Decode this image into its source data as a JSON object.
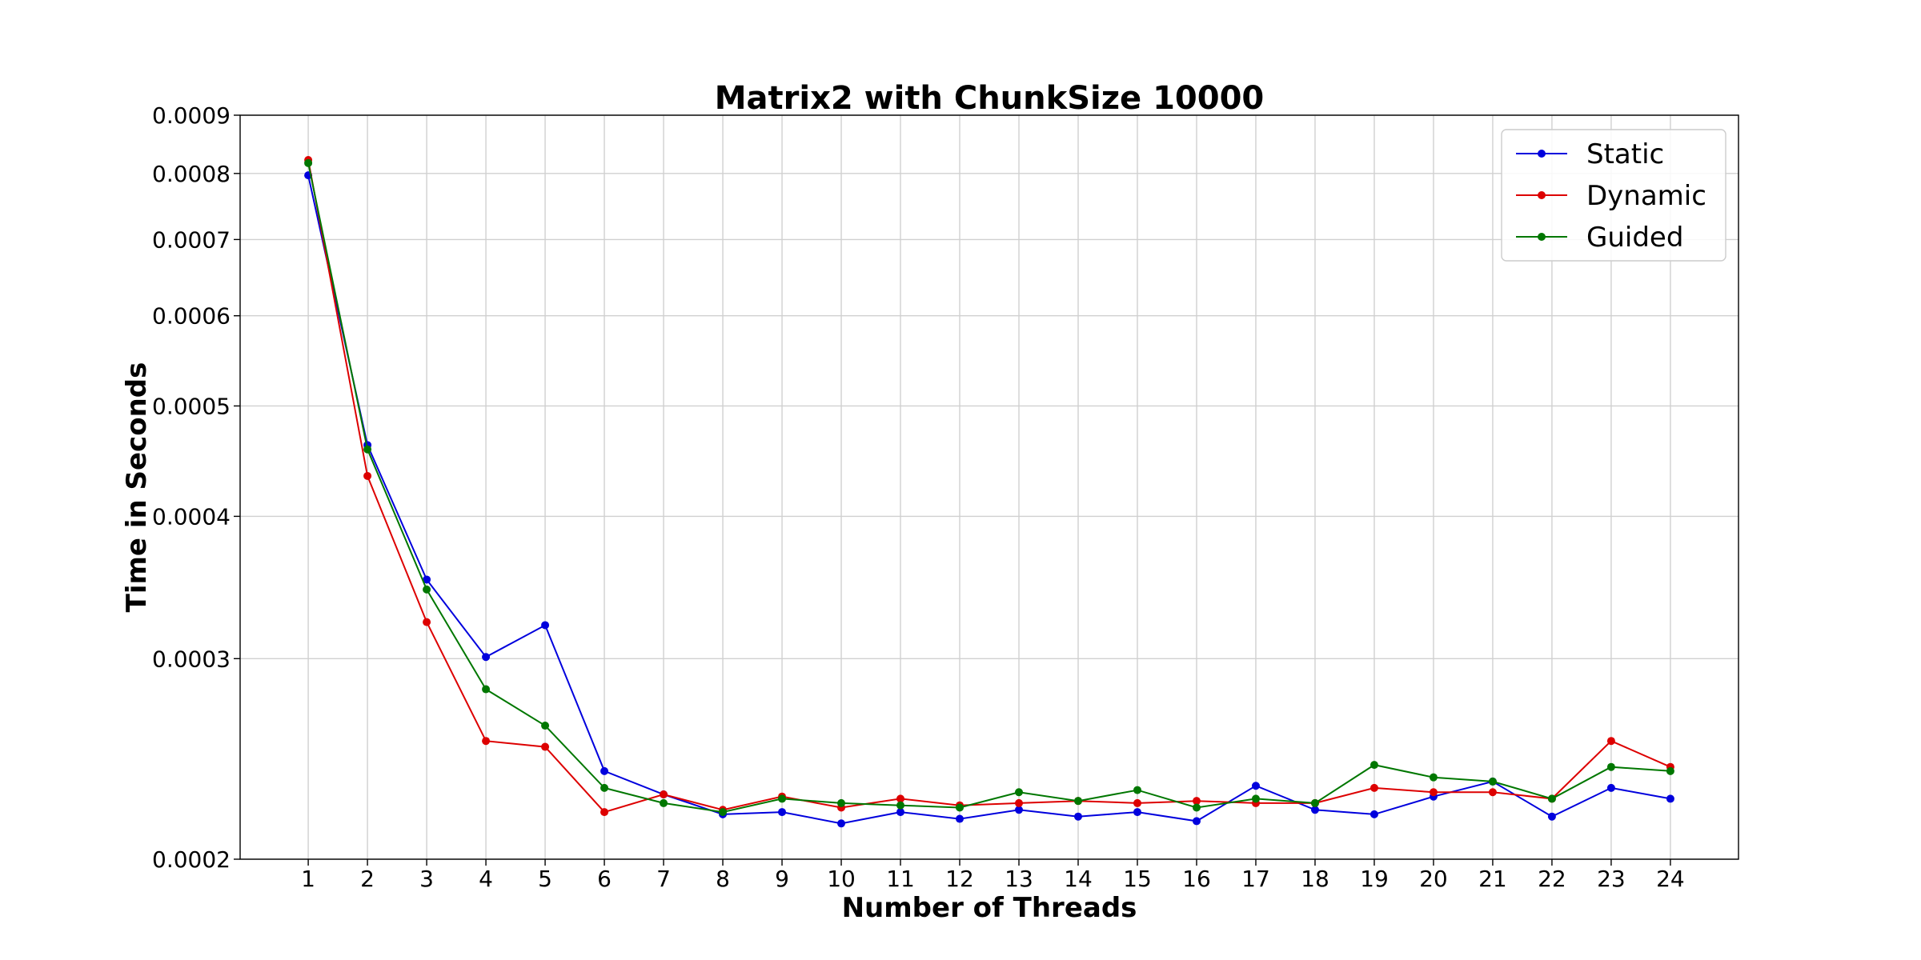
{
  "chart_data": {
    "type": "line",
    "title": "Matrix2 with ChunkSize 10000",
    "xlabel": "Number of Threads",
    "ylabel": "Time in Seconds",
    "yscale": "log",
    "ylim": [
      0.0002,
      0.0009
    ],
    "xlim": [
      -0.15,
      25.15
    ],
    "x": [
      1,
      2,
      3,
      4,
      5,
      6,
      7,
      8,
      9,
      10,
      11,
      12,
      13,
      14,
      15,
      16,
      17,
      18,
      19,
      20,
      21,
      22,
      23,
      24
    ],
    "x_ticks": [
      "1",
      "2",
      "3",
      "4",
      "5",
      "6",
      "7",
      "8",
      "9",
      "10",
      "11",
      "12",
      "13",
      "14",
      "15",
      "16",
      "17",
      "18",
      "19",
      "20",
      "21",
      "22",
      "23",
      "24"
    ],
    "y_ticks": [
      {
        "value": 0.0002,
        "label": "0.0002"
      },
      {
        "value": 0.0003,
        "label": "0.0003"
      },
      {
        "value": 0.0004,
        "label": "0.0004"
      },
      {
        "value": 0.0005,
        "label": "0.0005"
      },
      {
        "value": 0.0006,
        "label": "0.0006"
      },
      {
        "value": 0.0007,
        "label": "0.0007"
      },
      {
        "value": 0.0008,
        "label": "0.0008"
      },
      {
        "value": 0.0009,
        "label": "0.0009"
      }
    ],
    "grid": true,
    "legend": "top-right",
    "series": [
      {
        "name": "Static",
        "color": "#0000dd",
        "values": [
          0.000797,
          0.000462,
          0.000352,
          0.000301,
          0.000321,
          0.000239,
          0.000228,
          0.000219,
          0.00022,
          0.000215,
          0.00022,
          0.000217,
          0.000221,
          0.000218,
          0.00022,
          0.000216,
          0.000232,
          0.000221,
          0.000219,
          0.000227,
          0.000234,
          0.000218,
          0.000231,
          0.000226
        ]
      },
      {
        "name": "Dynamic",
        "color": "#dd0000",
        "values": [
          0.000822,
          0.000434,
          0.000323,
          0.000254,
          0.000251,
          0.00022,
          0.000228,
          0.000221,
          0.000227,
          0.000222,
          0.000226,
          0.000223,
          0.000224,
          0.000225,
          0.000224,
          0.000225,
          0.000224,
          0.000224,
          0.000231,
          0.000229,
          0.000229,
          0.000226,
          0.000254,
          0.000241
        ]
      },
      {
        "name": "Guided",
        "color": "#007700",
        "values": [
          0.000817,
          0.000458,
          0.000345,
          0.000282,
          0.000262,
          0.000231,
          0.000224,
          0.00022,
          0.000226,
          0.000224,
          0.000223,
          0.000222,
          0.000229,
          0.000225,
          0.00023,
          0.000222,
          0.000226,
          0.000224,
          0.000242,
          0.000236,
          0.000234,
          0.000226,
          0.000241,
          0.000239
        ]
      }
    ]
  }
}
